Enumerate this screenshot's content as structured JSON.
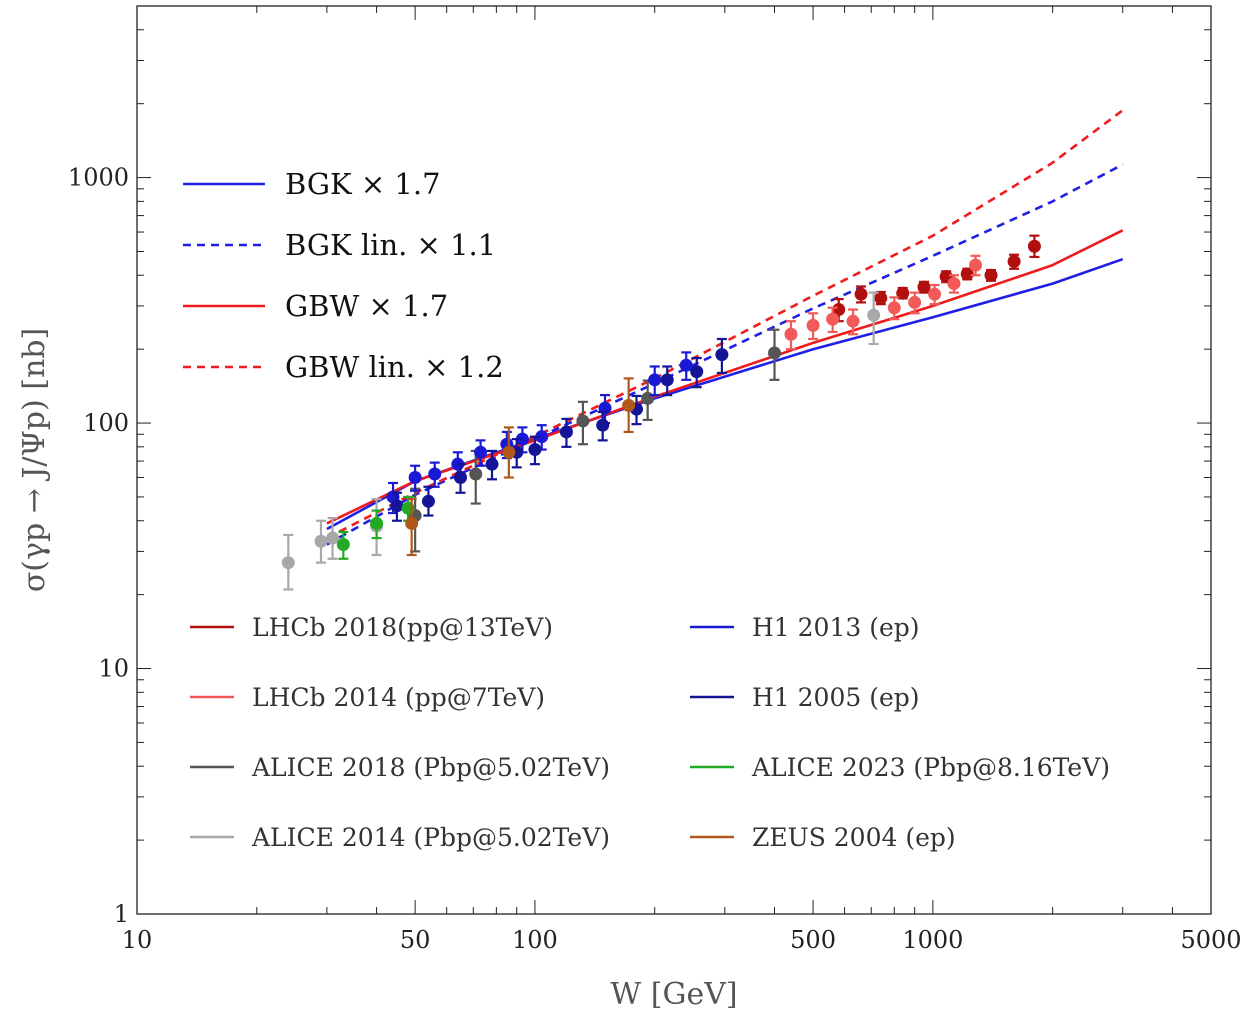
{
  "chart_data": {
    "type": "scatter",
    "title": "",
    "xlabel": "W [GeV]",
    "ylabel": "σ(γp → J/Ψp) [nb]",
    "xscale": "log",
    "yscale": "log",
    "xlim": [
      10,
      5000
    ],
    "ylim": [
      1,
      5000
    ],
    "x_ticks": [
      10,
      50,
      100,
      500,
      1000,
      5000
    ],
    "x_tick_labels": [
      "10",
      "50",
      "100",
      "500",
      "1000",
      "5000"
    ],
    "y_ticks": [
      1,
      10,
      100,
      1000
    ],
    "y_tick_labels": [
      "1",
      "10",
      "100",
      "1000"
    ],
    "grid": false,
    "legend_models_position": "upper-left",
    "legend_data_position": "lower-center",
    "models": [
      {
        "name": "BGK × 1.7",
        "color": "#1f1fe6",
        "dash": "solid",
        "x": [
          30,
          50,
          100,
          200,
          500,
          1000,
          2000,
          3000
        ],
        "y": [
          37,
          58,
          86,
          126,
          200,
          270,
          370,
          465
        ]
      },
      {
        "name": "BGK lin. × 1.1",
        "color": "#1f1fe6",
        "dash": "dashed",
        "x": [
          30,
          50,
          100,
          200,
          500,
          1000,
          2000,
          3000
        ],
        "y": [
          32,
          51,
          86,
          145,
          293,
          480,
          800,
          1130
        ]
      },
      {
        "name": "GBW × 1.7",
        "color": "#ee1c1c",
        "dash": "solid",
        "x": [
          30,
          50,
          100,
          200,
          500,
          1000,
          2000,
          3000
        ],
        "y": [
          39,
          58,
          85,
          128,
          212,
          300,
          440,
          610
        ]
      },
      {
        "name": "GBW lin. × 1.2",
        "color": "#ee1c1c",
        "dash": "dashed",
        "x": [
          30,
          50,
          100,
          200,
          500,
          1000,
          2000,
          3000
        ],
        "y": [
          34,
          52,
          88,
          152,
          330,
          580,
          1150,
          1880
        ]
      }
    ],
    "series": [
      {
        "name": "LHCb 2018(pp@13TeV)",
        "color": "#b20f0f",
        "points": [
          {
            "x": 580,
            "y": 290,
            "lo": 260,
            "hi": 320
          },
          {
            "x": 660,
            "y": 335,
            "lo": 310,
            "hi": 360
          },
          {
            "x": 740,
            "y": 323,
            "lo": 305,
            "hi": 342
          },
          {
            "x": 840,
            "y": 338,
            "lo": 322,
            "hi": 355
          },
          {
            "x": 950,
            "y": 358,
            "lo": 340,
            "hi": 376
          },
          {
            "x": 1080,
            "y": 395,
            "lo": 375,
            "hi": 415
          },
          {
            "x": 1220,
            "y": 405,
            "lo": 385,
            "hi": 425
          },
          {
            "x": 1400,
            "y": 400,
            "lo": 380,
            "hi": 420
          },
          {
            "x": 1600,
            "y": 455,
            "lo": 425,
            "hi": 485
          },
          {
            "x": 1800,
            "y": 525,
            "lo": 475,
            "hi": 580
          }
        ]
      },
      {
        "name": "LHCb 2014 (pp@7TeV)",
        "color": "#f25a5a",
        "points": [
          {
            "x": 440,
            "y": 230,
            "lo": 200,
            "hi": 260
          },
          {
            "x": 500,
            "y": 250,
            "lo": 220,
            "hi": 280
          },
          {
            "x": 560,
            "y": 265,
            "lo": 235,
            "hi": 295
          },
          {
            "x": 630,
            "y": 260,
            "lo": 230,
            "hi": 290
          },
          {
            "x": 800,
            "y": 295,
            "lo": 265,
            "hi": 325
          },
          {
            "x": 900,
            "y": 310,
            "lo": 280,
            "hi": 340
          },
          {
            "x": 1010,
            "y": 335,
            "lo": 305,
            "hi": 365
          },
          {
            "x": 1130,
            "y": 370,
            "lo": 340,
            "hi": 400
          },
          {
            "x": 1280,
            "y": 440,
            "lo": 400,
            "hi": 480
          }
        ]
      },
      {
        "name": "ALICE 2018 (Pbp@5.02TeV)",
        "color": "#555555",
        "points": [
          {
            "x": 50,
            "y": 42,
            "lo": 30,
            "hi": 54
          },
          {
            "x": 71,
            "y": 62,
            "lo": 47,
            "hi": 77
          },
          {
            "x": 132,
            "y": 102,
            "lo": 82,
            "hi": 122
          },
          {
            "x": 192,
            "y": 126,
            "lo": 103,
            "hi": 149
          },
          {
            "x": 400,
            "y": 193,
            "lo": 150,
            "hi": 240
          }
        ]
      },
      {
        "name": "ALICE 2014 (Pbp@5.02TeV)",
        "color": "#a8a8a8",
        "points": [
          {
            "x": 24,
            "y": 27,
            "lo": 21,
            "hi": 35
          },
          {
            "x": 29,
            "y": 33,
            "lo": 27,
            "hi": 40
          },
          {
            "x": 31,
            "y": 34,
            "lo": 28,
            "hi": 41
          },
          {
            "x": 40,
            "y": 38,
            "lo": 29,
            "hi": 49
          },
          {
            "x": 710,
            "y": 275,
            "lo": 210,
            "hi": 340
          }
        ]
      },
      {
        "name": "H1 2013 (ep)",
        "color": "#1a1ad6",
        "points": [
          {
            "x": 44,
            "y": 50,
            "lo": 43,
            "hi": 57
          },
          {
            "x": 50,
            "y": 60,
            "lo": 53,
            "hi": 67
          },
          {
            "x": 56,
            "y": 62,
            "lo": 55,
            "hi": 69
          },
          {
            "x": 64,
            "y": 68,
            "lo": 60,
            "hi": 76
          },
          {
            "x": 73,
            "y": 76,
            "lo": 67,
            "hi": 85
          },
          {
            "x": 85,
            "y": 82,
            "lo": 72,
            "hi": 92
          },
          {
            "x": 93,
            "y": 86,
            "lo": 76,
            "hi": 96
          },
          {
            "x": 104,
            "y": 88,
            "lo": 78,
            "hi": 98
          },
          {
            "x": 150,
            "y": 115,
            "lo": 100,
            "hi": 130
          },
          {
            "x": 200,
            "y": 150,
            "lo": 130,
            "hi": 170
          },
          {
            "x": 240,
            "y": 172,
            "lo": 150,
            "hi": 194
          }
        ]
      },
      {
        "name": "H1 2005 (ep)",
        "color": "#141496",
        "points": [
          {
            "x": 45,
            "y": 46,
            "lo": 40,
            "hi": 52
          },
          {
            "x": 54,
            "y": 48,
            "lo": 42,
            "hi": 55
          },
          {
            "x": 65,
            "y": 60,
            "lo": 52,
            "hi": 68
          },
          {
            "x": 78,
            "y": 68,
            "lo": 59,
            "hi": 77
          },
          {
            "x": 90,
            "y": 76,
            "lo": 66,
            "hi": 86
          },
          {
            "x": 100,
            "y": 78,
            "lo": 68,
            "hi": 88
          },
          {
            "x": 120,
            "y": 92,
            "lo": 80,
            "hi": 104
          },
          {
            "x": 148,
            "y": 98,
            "lo": 85,
            "hi": 111
          },
          {
            "x": 180,
            "y": 114,
            "lo": 99,
            "hi": 129
          },
          {
            "x": 215,
            "y": 150,
            "lo": 130,
            "hi": 170
          },
          {
            "x": 255,
            "y": 162,
            "lo": 140,
            "hi": 184
          },
          {
            "x": 295,
            "y": 190,
            "lo": 160,
            "hi": 220
          }
        ]
      },
      {
        "name": "ALICE 2023 (Pbp@8.16TeV)",
        "color": "#22aa22",
        "points": [
          {
            "x": 33,
            "y": 32,
            "lo": 28,
            "hi": 36
          },
          {
            "x": 40,
            "y": 39,
            "lo": 34,
            "hi": 44
          },
          {
            "x": 48,
            "y": 45,
            "lo": 40,
            "hi": 50
          }
        ]
      },
      {
        "name": "ZEUS 2004 (ep)",
        "color": "#b0581a",
        "points": [
          {
            "x": 49,
            "y": 39,
            "lo": 29,
            "hi": 49
          },
          {
            "x": 86,
            "y": 76,
            "lo": 60,
            "hi": 96
          },
          {
            "x": 172,
            "y": 118,
            "lo": 92,
            "hi": 152
          }
        ]
      }
    ]
  }
}
